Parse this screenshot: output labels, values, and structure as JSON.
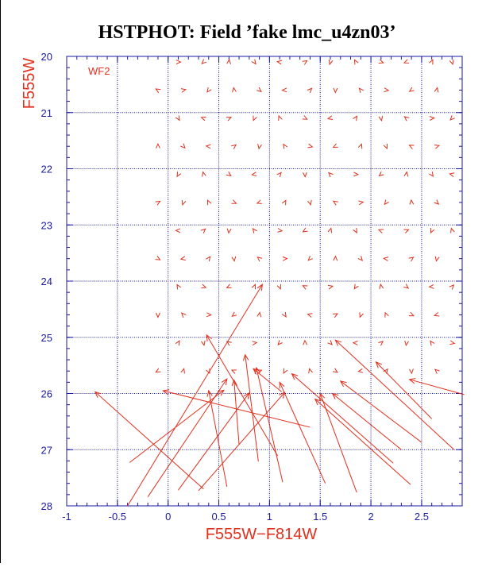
{
  "chart_data": {
    "type": "scatter",
    "title": "HSTPHOT: Field ’fake lmc_u4zn03’",
    "xlabel": "F555W−F814W",
    "ylabel": "F555W",
    "chip_label": "WF2",
    "xlim": [
      -1.0,
      2.9
    ],
    "ylim": [
      28,
      20
    ],
    "y_inverted": true,
    "grid": true,
    "x_ticks": [
      "-1",
      "-0.5",
      "0",
      "0.5",
      "1",
      "1.5",
      "2",
      "2.5"
    ],
    "x_tick_values": [
      -1,
      -0.5,
      0,
      0.5,
      1,
      1.5,
      2,
      2.5
    ],
    "y_ticks": [
      "20",
      "21",
      "22",
      "23",
      "24",
      "25",
      "26",
      "27",
      "28"
    ],
    "y_tick_values": [
      20,
      21,
      22,
      23,
      24,
      25,
      26,
      27,
      28
    ],
    "colors": {
      "axis": "#1a1aa0",
      "grid": "#1a1aa0",
      "data": "#e0301e",
      "title": "#000000"
    },
    "markers": [
      [
        0.1,
        20.1
      ],
      [
        0.35,
        20.1
      ],
      [
        0.6,
        20.1
      ],
      [
        0.85,
        20.1
      ],
      [
        1.1,
        20.1
      ],
      [
        1.35,
        20.1
      ],
      [
        1.6,
        20.1
      ],
      [
        1.85,
        20.1
      ],
      [
        2.1,
        20.1
      ],
      [
        2.35,
        20.1
      ],
      [
        2.6,
        20.1
      ],
      [
        2.8,
        20.1
      ],
      [
        -0.1,
        20.6
      ],
      [
        0.15,
        20.6
      ],
      [
        0.4,
        20.6
      ],
      [
        0.65,
        20.6
      ],
      [
        0.9,
        20.6
      ],
      [
        1.15,
        20.6
      ],
      [
        1.4,
        20.6
      ],
      [
        1.65,
        20.6
      ],
      [
        1.9,
        20.6
      ],
      [
        2.15,
        20.6
      ],
      [
        2.4,
        20.6
      ],
      [
        2.65,
        20.6
      ],
      [
        0.1,
        21.1
      ],
      [
        0.35,
        21.1
      ],
      [
        0.6,
        21.1
      ],
      [
        0.85,
        21.1
      ],
      [
        1.1,
        21.1
      ],
      [
        1.35,
        21.1
      ],
      [
        1.6,
        21.1
      ],
      [
        1.85,
        21.1
      ],
      [
        2.1,
        21.1
      ],
      [
        2.35,
        21.1
      ],
      [
        2.6,
        21.1
      ],
      [
        2.8,
        21.1
      ],
      [
        -0.1,
        21.6
      ],
      [
        0.15,
        21.6
      ],
      [
        0.4,
        21.6
      ],
      [
        0.65,
        21.6
      ],
      [
        0.9,
        21.6
      ],
      [
        1.15,
        21.6
      ],
      [
        1.4,
        21.6
      ],
      [
        1.65,
        21.6
      ],
      [
        1.9,
        21.6
      ],
      [
        2.15,
        21.6
      ],
      [
        2.4,
        21.6
      ],
      [
        2.65,
        21.6
      ],
      [
        0.1,
        22.1
      ],
      [
        0.35,
        22.1
      ],
      [
        0.6,
        22.1
      ],
      [
        0.85,
        22.1
      ],
      [
        1.1,
        22.1
      ],
      [
        1.35,
        22.1
      ],
      [
        1.6,
        22.1
      ],
      [
        1.85,
        22.1
      ],
      [
        2.1,
        22.1
      ],
      [
        2.35,
        22.1
      ],
      [
        2.6,
        22.1
      ],
      [
        2.8,
        22.1
      ],
      [
        -0.1,
        22.6
      ],
      [
        0.15,
        22.6
      ],
      [
        0.4,
        22.6
      ],
      [
        0.65,
        22.6
      ],
      [
        0.9,
        22.6
      ],
      [
        1.15,
        22.6
      ],
      [
        1.4,
        22.6
      ],
      [
        1.65,
        22.6
      ],
      [
        1.9,
        22.6
      ],
      [
        2.15,
        22.6
      ],
      [
        2.4,
        22.6
      ],
      [
        2.65,
        22.6
      ],
      [
        0.1,
        23.1
      ],
      [
        0.35,
        23.1
      ],
      [
        0.6,
        23.1
      ],
      [
        0.85,
        23.1
      ],
      [
        1.1,
        23.1
      ],
      [
        1.35,
        23.1
      ],
      [
        1.6,
        23.1
      ],
      [
        1.85,
        23.1
      ],
      [
        2.1,
        23.1
      ],
      [
        2.35,
        23.1
      ],
      [
        2.6,
        23.1
      ],
      [
        2.8,
        23.1
      ],
      [
        -0.1,
        23.6
      ],
      [
        0.15,
        23.6
      ],
      [
        0.4,
        23.6
      ],
      [
        0.65,
        23.6
      ],
      [
        0.9,
        23.6
      ],
      [
        1.15,
        23.6
      ],
      [
        1.4,
        23.6
      ],
      [
        1.65,
        23.6
      ],
      [
        1.9,
        23.6
      ],
      [
        2.15,
        23.6
      ],
      [
        2.4,
        23.6
      ],
      [
        2.65,
        23.6
      ],
      [
        0.1,
        24.1
      ],
      [
        0.35,
        24.1
      ],
      [
        0.6,
        24.1
      ],
      [
        0.85,
        24.1
      ],
      [
        1.1,
        24.1
      ],
      [
        1.35,
        24.1
      ],
      [
        1.6,
        24.1
      ],
      [
        1.85,
        24.1
      ],
      [
        2.1,
        24.1
      ],
      [
        2.35,
        24.1
      ],
      [
        2.6,
        24.1
      ],
      [
        2.8,
        24.1
      ],
      [
        -0.1,
        24.6
      ],
      [
        0.15,
        24.6
      ],
      [
        0.4,
        24.6
      ],
      [
        0.65,
        24.6
      ],
      [
        0.9,
        24.6
      ],
      [
        1.15,
        24.6
      ],
      [
        1.4,
        24.6
      ],
      [
        1.65,
        24.6
      ],
      [
        1.9,
        24.6
      ],
      [
        2.15,
        24.6
      ],
      [
        2.4,
        24.6
      ],
      [
        2.65,
        24.6
      ],
      [
        0.1,
        25.1
      ],
      [
        0.35,
        25.1
      ],
      [
        0.6,
        25.1
      ],
      [
        0.85,
        25.1
      ],
      [
        1.1,
        25.1
      ],
      [
        1.35,
        25.1
      ],
      [
        1.6,
        25.1
      ],
      [
        1.85,
        25.1
      ],
      [
        2.1,
        25.1
      ],
      [
        2.35,
        25.1
      ],
      [
        2.6,
        25.1
      ],
      [
        2.8,
        25.1
      ],
      [
        -0.1,
        25.6
      ],
      [
        0.15,
        25.6
      ],
      [
        0.4,
        25.6
      ],
      [
        0.65,
        25.6
      ],
      [
        0.9,
        25.6
      ],
      [
        1.15,
        25.6
      ],
      [
        1.4,
        25.6
      ],
      [
        1.65,
        25.6
      ],
      [
        1.9,
        25.6
      ],
      [
        2.15,
        25.6
      ],
      [
        2.4,
        25.6
      ],
      [
        2.65,
        25.6
      ]
    ],
    "arrows": [
      [
        0.35,
        27.7,
        -0.72,
        25.97
      ],
      [
        -0.4,
        28.0,
        0.93,
        24.06
      ],
      [
        -0.38,
        27.23,
        0.55,
        25.94
      ],
      [
        0.1,
        27.72,
        0.8,
        25.99
      ],
      [
        0.58,
        27.66,
        0.4,
        25.95
      ],
      [
        1.4,
        26.6,
        -0.05,
        25.95
      ],
      [
        1.12,
        25.97,
        0.84,
        25.56
      ],
      [
        1.08,
        27.11,
        0.38,
        24.96
      ],
      [
        0.7,
        26.91,
        0.65,
        25.76
      ],
      [
        0.89,
        27.21,
        0.76,
        25.31
      ],
      [
        1.13,
        27.58,
        0.87,
        25.54
      ],
      [
        1.55,
        27.6,
        1.1,
        25.8
      ],
      [
        1.86,
        27.76,
        1.5,
        26.0
      ],
      [
        2.39,
        27.62,
        1.45,
        26.1
      ],
      [
        2.22,
        27.24,
        1.22,
        25.65
      ],
      [
        2.5,
        26.87,
        1.7,
        25.78
      ],
      [
        2.82,
        27.0,
        1.65,
        25.05
      ],
      [
        2.3,
        27.0,
        1.62,
        26.0
      ],
      [
        2.6,
        26.45,
        2.05,
        25.44
      ],
      [
        2.92,
        26.02,
        2.38,
        25.75
      ],
      [
        0.3,
        27.73,
        1.15,
        25.98
      ],
      [
        -0.2,
        27.84,
        0.58,
        25.74
      ]
    ]
  }
}
